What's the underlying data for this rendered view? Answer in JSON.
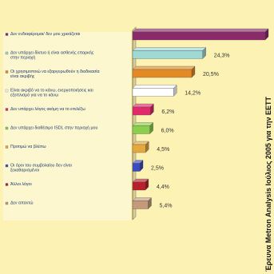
{
  "chart_data": {
    "type": "bar",
    "orientation": "horizontal",
    "style": "3d",
    "categories": [
      "Δεν ενδιαφέρομαι/ δεν μου χρειάζεται",
      "Δεν υπάρχει δίκτυο ή είναι ασθενής επαρκής στην περιοχή",
      "Οι χρησιμοποιώ να εξαργυρωθούν η διαδικασία είναι ακριβής",
      "Είναι ακριβό να το κάνω, ενεργοποιήσεις και εξοπλισμό για να το κάνω",
      "Δεν υπάρχει λόγος ακόμη να το επιλέξω",
      "Δεν υπάρχει διαθέσιμο ISDL στην περιοχή μου",
      "Προτιμώ να βλέπω",
      "Οι όροι του συμβολαίου δεν είναι ξεκαθαρισμένοι",
      "Άλλοι λόγοι",
      "Δεν απαντώ"
    ],
    "values": [
      46.0,
      24.3,
      20.5,
      14.2,
      6.2,
      6.0,
      4.5,
      2.5,
      4.4,
      5.4
    ],
    "value_labels": [
      "",
      "24,3%",
      "20,5%",
      "14,2%",
      "6,2%",
      "6,0%",
      "4,5%",
      "2,5%",
      "4,4%",
      "5,4%"
    ],
    "xlim": [
      0,
      46
    ],
    "colors": [
      "#8a2a6a",
      "#9ed9d4",
      "#e48a24",
      "#ffffff",
      "#e02a6a",
      "#8ccf4c",
      "#e4a83c",
      "#3a4cc2",
      "#b8202c",
      "#c49a7a"
    ],
    "source": "Έρευνα Metron Analysis Ιούλιος 2005 για την ΕΕΤΤ",
    "grid": false,
    "legend": "none"
  }
}
